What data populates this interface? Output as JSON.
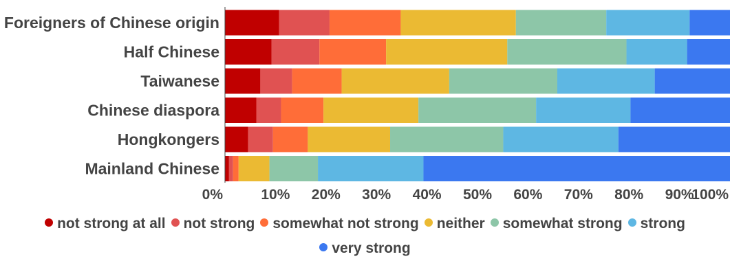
{
  "chart_data": {
    "type": "bar",
    "orientation": "horizontal",
    "stacked": true,
    "categories": [
      "Foreigners of Chinese origin",
      "Half Chinese",
      "Taiwanese",
      "Chinese diaspora",
      "Hongkongers",
      "Mainland Chinese"
    ],
    "series": [
      {
        "name": "not strong at all",
        "color": "#c00000",
        "values": [
          10.7,
          9.2,
          7.0,
          6.2,
          4.6,
          0.8
        ]
      },
      {
        "name": "not strong",
        "color": "#e05252",
        "values": [
          10.0,
          9.5,
          6.3,
          4.9,
          4.9,
          0.8
        ]
      },
      {
        "name": "somewhat not strong",
        "color": "#ff6d38",
        "values": [
          14.1,
          13.2,
          9.8,
          8.4,
          6.9,
          1.1
        ]
      },
      {
        "name": "neither",
        "color": "#ebba33",
        "values": [
          22.8,
          24.0,
          21.3,
          18.8,
          16.3,
          6.1
        ]
      },
      {
        "name": "somewhat strong",
        "color": "#8dc6a8",
        "values": [
          17.9,
          23.6,
          21.4,
          23.3,
          22.4,
          9.6
        ]
      },
      {
        "name": "strong",
        "color": "#5eb7e3",
        "values": [
          16.5,
          12.0,
          19.3,
          18.7,
          22.8,
          20.9
        ]
      },
      {
        "name": "very strong",
        "color": "#3b78f0",
        "values": [
          8.0,
          8.5,
          14.9,
          19.7,
          22.1,
          60.7
        ]
      }
    ],
    "xlim": [
      0,
      100
    ],
    "x_ticks": [
      "0%",
      "10%",
      "20%",
      "30%",
      "40%",
      "50%",
      "60%",
      "70%",
      "80%",
      "90%",
      "100%"
    ],
    "legend_position": "bottom",
    "grid": false
  }
}
